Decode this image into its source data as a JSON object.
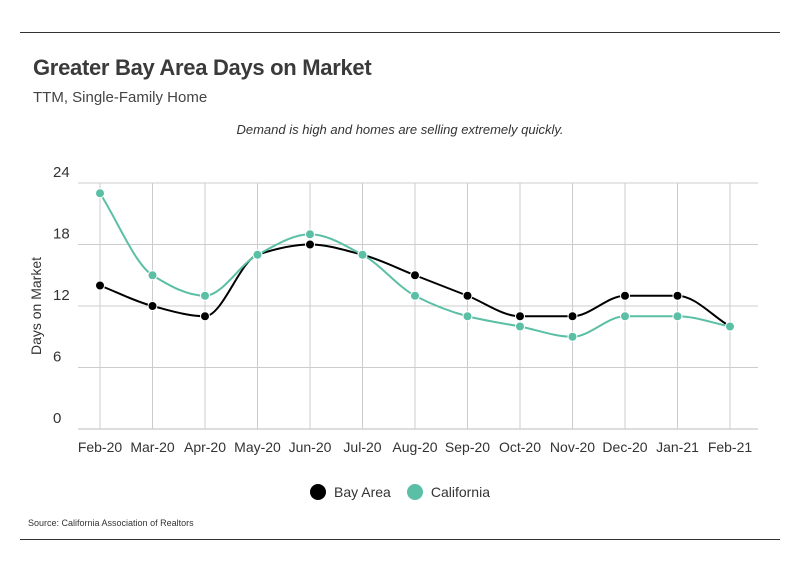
{
  "header": {
    "title": "Greater Bay Area Days on Market",
    "subtitle": "TTM, Single-Family Home",
    "annotation": "Demand is high and homes are selling extremely quickly."
  },
  "footer": {
    "source": "Source:  California Association of Realtors"
  },
  "chart_data": {
    "type": "line",
    "title": "Greater Bay Area Days on Market",
    "subtitle": "TTM, Single-Family Home",
    "xlabel": "",
    "ylabel": "Days on Market",
    "ylim": [
      0,
      24
    ],
    "yticks": [
      0,
      6,
      12,
      18,
      24
    ],
    "grid": true,
    "smooth": true,
    "legend_position": "bottom",
    "categories": [
      "Feb-20",
      "Mar-20",
      "Apr-20",
      "May-20",
      "Jun-20",
      "Jul-20",
      "Aug-20",
      "Sep-20",
      "Oct-20",
      "Nov-20",
      "Dec-20",
      "Jan-21",
      "Feb-21"
    ],
    "series": [
      {
        "name": "Bay Area",
        "color": "#000000",
        "values": [
          14,
          12,
          11,
          17,
          18,
          17,
          15,
          13,
          11,
          11,
          13,
          13,
          10
        ]
      },
      {
        "name": "California",
        "color": "#5bbfa6",
        "values": [
          23,
          15,
          13,
          17,
          19,
          17,
          13,
          11,
          10,
          9,
          11,
          11,
          10
        ]
      }
    ]
  }
}
